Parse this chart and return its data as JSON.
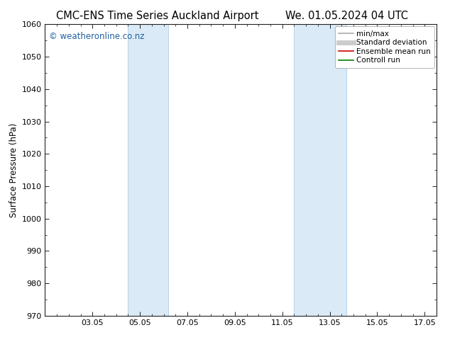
{
  "title_left": "CMC-ENS Time Series Auckland Airport",
  "title_right": "We. 01.05.2024 04 UTC",
  "ylabel": "Surface Pressure (hPa)",
  "ylim": [
    970,
    1060
  ],
  "yticks": [
    970,
    980,
    990,
    1000,
    1010,
    1020,
    1030,
    1040,
    1050,
    1060
  ],
  "xlim": [
    0.0,
    16.5
  ],
  "xtick_labels": [
    "03.05",
    "05.05",
    "07.05",
    "09.05",
    "11.05",
    "13.05",
    "15.05",
    "17.05"
  ],
  "xtick_positions": [
    2,
    4,
    6,
    8,
    10,
    12,
    14,
    16
  ],
  "shade_bands": [
    {
      "start": 3.5,
      "end": 5.2,
      "color": "#daeaf6"
    },
    {
      "start": 10.5,
      "end": 12.7,
      "color": "#daeaf6"
    }
  ],
  "band_edge_color": "#b8d4e8",
  "watermark": "© weatheronline.co.nz",
  "watermark_color": "#2060a0",
  "legend_items": [
    {
      "label": "min/max",
      "color": "#aaaaaa",
      "lw": 1.2
    },
    {
      "label": "Standard deviation",
      "color": "#cccccc",
      "lw": 5
    },
    {
      "label": "Ensemble mean run",
      "color": "#cc0000",
      "lw": 1.2
    },
    {
      "label": "Controll run",
      "color": "#008000",
      "lw": 1.2
    }
  ],
  "bg_color": "#ffffff",
  "title_fontsize": 10.5,
  "tick_fontsize": 8,
  "ylabel_fontsize": 8.5,
  "watermark_fontsize": 8.5,
  "legend_fontsize": 7.5
}
